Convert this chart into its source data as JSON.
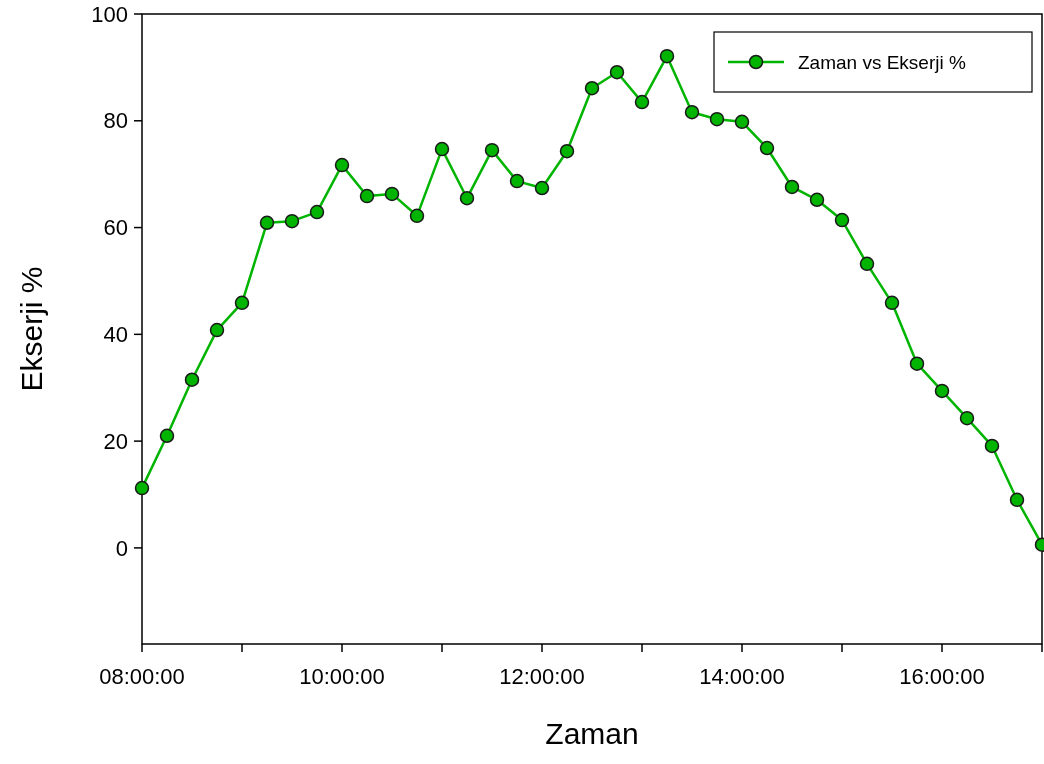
{
  "chart_data": {
    "type": "line",
    "xlabel": "Zaman",
    "ylabel": "Ekserji %",
    "x": [
      8,
      8.25,
      8.5,
      8.75,
      9,
      9.25,
      9.5,
      9.75,
      10,
      10.25,
      10.5,
      10.75,
      11,
      11.25,
      11.5,
      11.75,
      12,
      12.25,
      12.5,
      12.75,
      13,
      13.25,
      13.5,
      13.75,
      14,
      14.25,
      14.5,
      14.75,
      15,
      15.25,
      15.5,
      15.75,
      16,
      16.25,
      16.5,
      16.75,
      17
    ],
    "series": [
      {
        "name": "Zaman vs Ekserji %",
        "color": "#00b400",
        "values": [
          11.2,
          21,
          31.5,
          40.8,
          45.9,
          60.9,
          61.2,
          62.9,
          71.7,
          65.9,
          66.3,
          62.2,
          74.7,
          65.5,
          74.5,
          68.7,
          67.4,
          74.3,
          86.1,
          89.1,
          83.5,
          92.1,
          81.6,
          80.3,
          79.8,
          74.9,
          67.6,
          65.2,
          61.4,
          53.2,
          45.9,
          34.5,
          29.4,
          24.3,
          19.1,
          9,
          0.6
        ]
      }
    ],
    "xlim": [
      8,
      17
    ],
    "xticks": [
      {
        "value": 8,
        "label": "08:00:00"
      },
      {
        "value": 9,
        "label": null
      },
      {
        "value": 10,
        "label": "10:00:00"
      },
      {
        "value": 11,
        "label": null
      },
      {
        "value": 12,
        "label": "12:00:00"
      },
      {
        "value": 13,
        "label": null
      },
      {
        "value": 14,
        "label": "14:00:00"
      },
      {
        "value": 15,
        "label": null
      },
      {
        "value": 16,
        "label": "16:00:00"
      },
      {
        "value": 17,
        "label": null
      }
    ],
    "ylim": [
      -18,
      100
    ],
    "yticks": [
      0,
      20,
      40,
      60,
      80,
      100
    ],
    "marker": "circle",
    "line_style": "solid",
    "legend": "top right",
    "grid": false
  }
}
